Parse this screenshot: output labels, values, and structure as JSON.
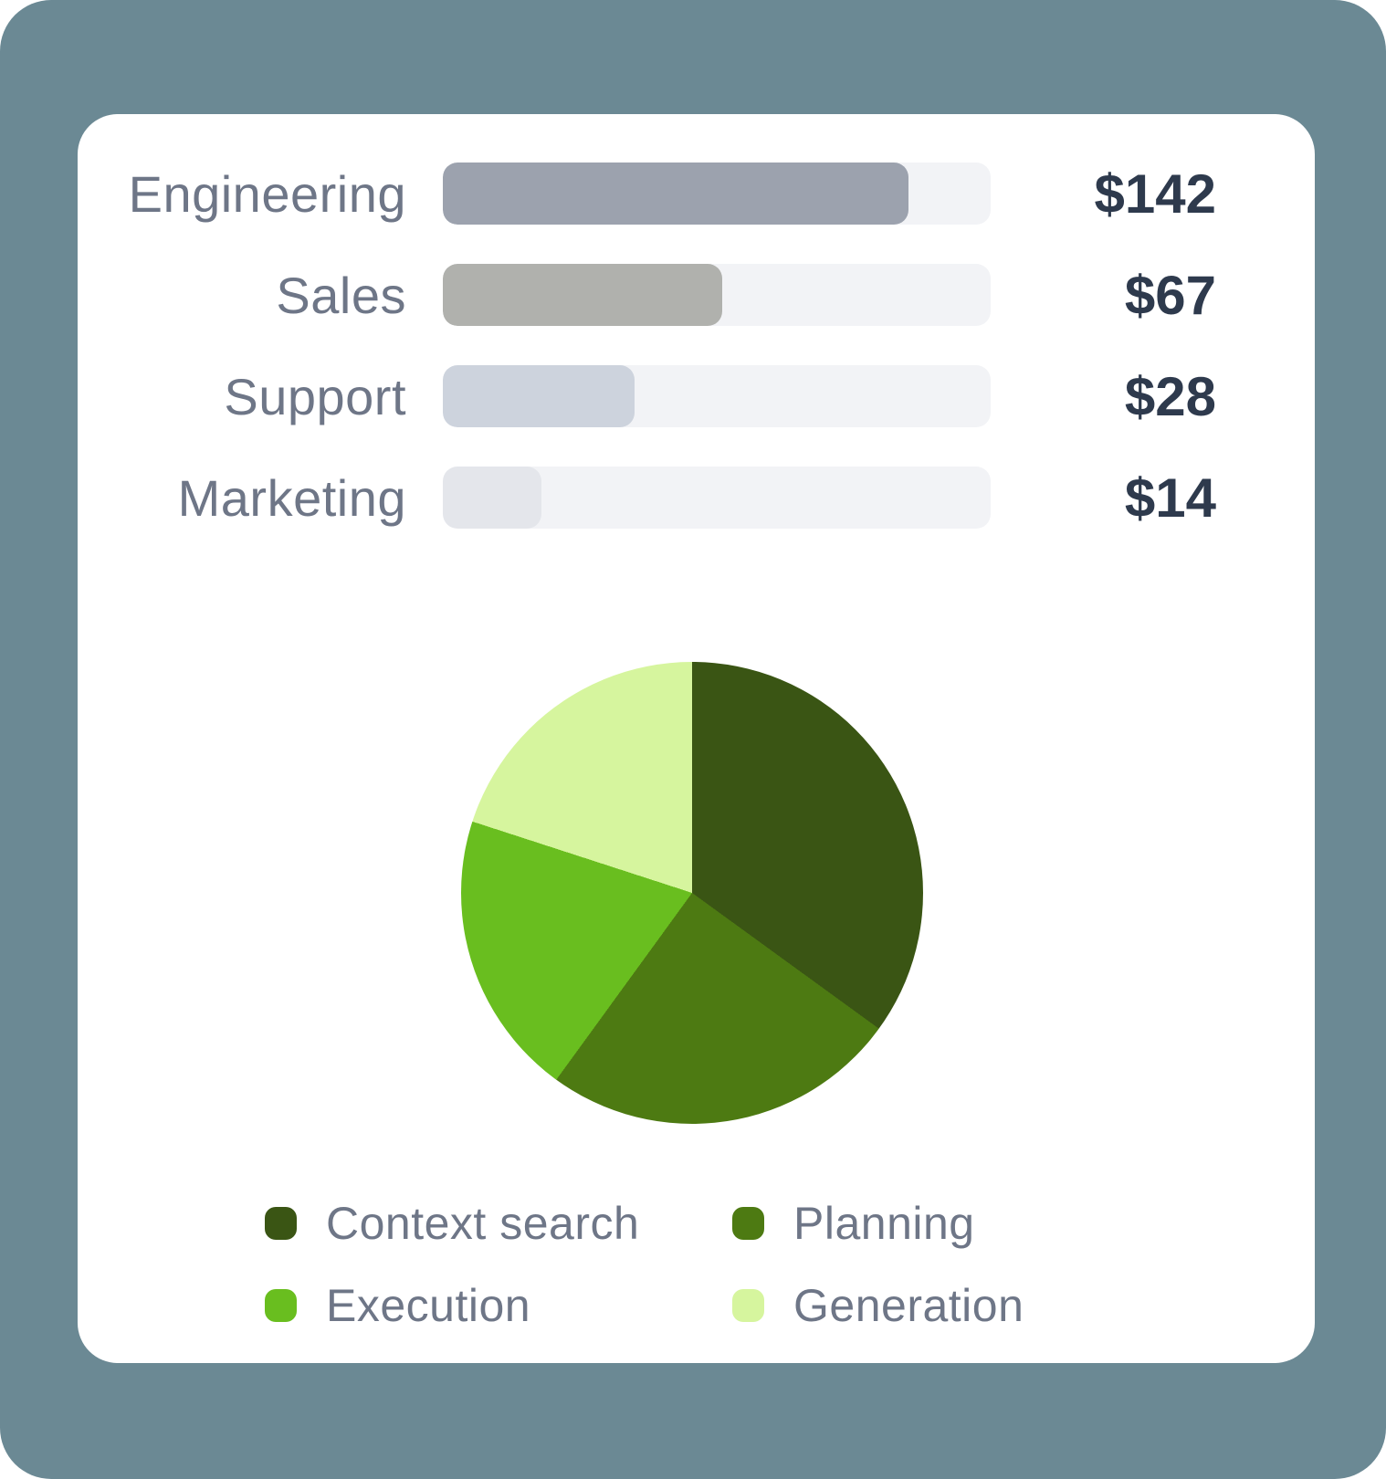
{
  "colors": {
    "page_background": "#6B8994",
    "card_background": "#FFFFFF",
    "category_label_text": "#6E7687",
    "value_text": "#2E3A4D",
    "legend_text": "#6E7687",
    "bar_track": "#F2F3F6"
  },
  "chart_data": [
    {
      "type": "bar",
      "orientation": "horizontal",
      "categories": [
        "Engineering",
        "Sales",
        "Support",
        "Marketing"
      ],
      "values": [
        142,
        67,
        28,
        14
      ],
      "value_labels": [
        "$142",
        "$67",
        "$28",
        "$14"
      ],
      "fill_pct": [
        85,
        51,
        35,
        18
      ],
      "bar_colors": [
        "#9CA2AE",
        "#B0B1AD",
        "#CDD3DD",
        "#E4E6EB"
      ],
      "track_color": "#F2F3F6",
      "grid": false,
      "value_label_position": "right"
    },
    {
      "type": "pie",
      "labels": [
        "Context search",
        "Planning",
        "Execution",
        "Generation"
      ],
      "values_pct": [
        35,
        25,
        20,
        20
      ],
      "colors": [
        "#3A5514",
        "#4D7A12",
        "#69BE1F",
        "#D6F59E"
      ],
      "start_angle_deg": 0,
      "direction": "clockwise",
      "legend_position": "bottom"
    }
  ]
}
